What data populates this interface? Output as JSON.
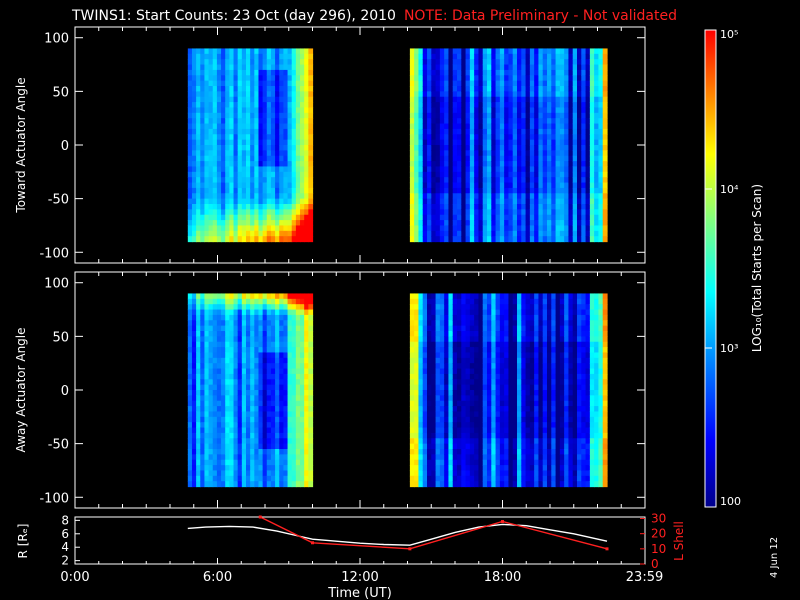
{
  "title": {
    "main": "TWINS1: Start Counts: 23 Oct (day 296), 2010",
    "note": "NOTE: Data Preliminary - Not validated"
  },
  "datestamp": "4 Jun 12",
  "colors": {
    "background": "#000000",
    "axes": "#ffffff",
    "note": "#ff2020",
    "lshell": "#ff2020",
    "radius": "#ffffff"
  },
  "chart_data": [
    {
      "type": "heatmap",
      "panel": "toward",
      "ylabel": "Toward Actuator Angle",
      "ylim": [
        -110,
        110
      ],
      "yticks": [
        "100",
        "50",
        "0",
        "-50",
        "-100"
      ],
      "ytick_values": [
        100,
        50,
        0,
        -50,
        -100
      ],
      "xlim_hours": [
        0,
        24
      ],
      "coverage_hours": [
        [
          4.75,
          10.0
        ],
        [
          14.1,
          22.4
        ]
      ],
      "angle_range": [
        -90,
        90
      ],
      "color_scale": "log"
    },
    {
      "type": "heatmap",
      "panel": "away",
      "ylabel": "Away Actuator Angle",
      "ylim": [
        -110,
        110
      ],
      "yticks": [
        "100",
        "50",
        "0",
        "-50",
        "-100"
      ],
      "ytick_values": [
        100,
        50,
        0,
        -50,
        -100
      ],
      "xlim_hours": [
        0,
        24
      ],
      "coverage_hours": [
        [
          4.75,
          10.0
        ],
        [
          14.1,
          22.4
        ]
      ],
      "angle_range": [
        -90,
        90
      ],
      "color_scale": "log"
    },
    {
      "type": "line",
      "panel": "orbit",
      "ylabel_left": "R [Rₑ]",
      "ylabel_right": "L Shell",
      "left_ylim": [
        1.5,
        8.5
      ],
      "left_yticks": [
        "8",
        "6",
        "4",
        "2"
      ],
      "left_ytick_values": [
        8,
        6,
        4,
        2
      ],
      "right_ylim": [
        0,
        31
      ],
      "right_yticks": [
        "30",
        "20",
        "10",
        "0"
      ],
      "right_ytick_values": [
        30,
        20,
        10,
        0
      ],
      "xlabel": "Time (UT)",
      "xticks": [
        "0:00",
        "6:00",
        "12:00",
        "18:00",
        "23:59"
      ],
      "xtick_values": [
        0,
        6,
        12,
        18,
        23.98
      ],
      "series": [
        {
          "axis": "left",
          "x": [
            4.75,
            5.5,
            6.5,
            7.5,
            8.5,
            9.5,
            10.0,
            11.0,
            12.0,
            13.0,
            14.1,
            15.0,
            16.0,
            17.0,
            18.0,
            19.0,
            20.0,
            21.0,
            22.4
          ],
          "y": [
            6.8,
            7.0,
            7.1,
            7.0,
            6.4,
            5.6,
            5.2,
            4.9,
            4.6,
            4.4,
            4.3,
            5.2,
            6.2,
            7.0,
            7.4,
            7.2,
            6.6,
            6.0,
            4.9
          ]
        },
        {
          "axis": "right",
          "x": [
            7.8,
            10.0,
            14.1,
            18.0,
            22.4
          ],
          "y": [
            31,
            14,
            10,
            28,
            10
          ]
        }
      ]
    }
  ],
  "colorbar": {
    "label": "LOG₁₀(Total Starts per Scan)",
    "ticks": [
      {
        "text": "10⁵",
        "value": 100000
      },
      {
        "text": "10⁴",
        "value": 10000
      },
      {
        "text": "10³",
        "value": 1000
      },
      {
        "text": "100",
        "value": 100
      }
    ],
    "range": [
      100,
      100000
    ],
    "colormap": [
      "#00008b",
      "#0000ff",
      "#0080ff",
      "#00ffff",
      "#80ff80",
      "#ffff00",
      "#ff8000",
      "#ff0000"
    ]
  }
}
